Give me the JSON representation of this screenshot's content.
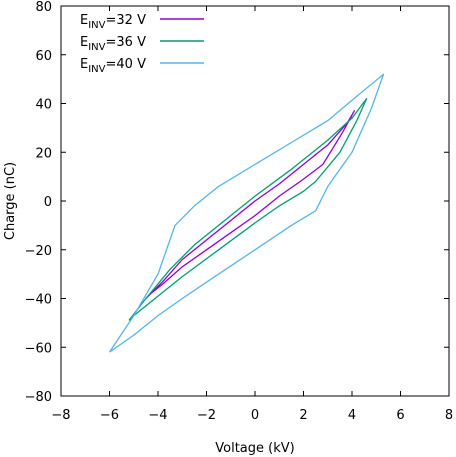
{
  "chart_data": {
    "type": "line",
    "xlabel": "Voltage (kV)",
    "ylabel": "Charge (nC)",
    "xlim": [
      -8,
      8
    ],
    "ylim": [
      -80,
      80
    ],
    "xticks": [
      -8,
      -6,
      -4,
      -2,
      0,
      2,
      4,
      6,
      8
    ],
    "yticks": [
      -80,
      -60,
      -40,
      -20,
      0,
      20,
      40,
      60,
      80
    ],
    "grid": false,
    "legend_position": "top-left",
    "series": [
      {
        "name": "E_INV=32 V",
        "label_main": "E",
        "label_sub": "INV",
        "label_rest": "=32 V",
        "color": "#9400d3",
        "x": [
          -4.5,
          -3.8,
          -3.0,
          -2.0,
          -1.0,
          0.0,
          1.0,
          2.0,
          3.0,
          3.8,
          4.1,
          3.6,
          2.8,
          2.0,
          1.0,
          0.0,
          -1.0,
          -2.0,
          -3.0,
          -3.8,
          -4.3,
          -4.5
        ],
        "y": [
          -40,
          -33,
          -24,
          -16,
          -8,
          0,
          7,
          15,
          23,
          32,
          37,
          28,
          15,
          9,
          2,
          -6,
          -13,
          -20,
          -27,
          -34,
          -38,
          -40
        ]
      },
      {
        "name": "E_INV=36 V",
        "label_main": "E",
        "label_sub": "INV",
        "label_rest": "=36 V",
        "color": "#009e73",
        "x": [
          -5.2,
          -4.5,
          -3.5,
          -2.5,
          -1.5,
          0.0,
          1.5,
          3.0,
          4.0,
          4.6,
          4.2,
          3.5,
          2.5,
          2.0,
          1.0,
          0.0,
          -1.5,
          -3.0,
          -4.0,
          -5.0,
          -5.2
        ],
        "y": [
          -49,
          -40,
          -28,
          -18,
          -10,
          2,
          13,
          25,
          34,
          42,
          33,
          20,
          8,
          4,
          -2,
          -9,
          -20,
          -31,
          -39,
          -47,
          -49
        ]
      },
      {
        "name": "E_INV=40 V",
        "label_main": "E",
        "label_sub": "INV",
        "label_rest": "=40 V",
        "color": "#56b4e9",
        "x": [
          -6.0,
          -5.0,
          -4.0,
          -3.3,
          -2.5,
          -1.5,
          0.0,
          1.5,
          3.0,
          4.2,
          5.3,
          4.8,
          4.0,
          3.0,
          2.5,
          1.5,
          0.0,
          -1.5,
          -3.0,
          -4.0,
          -5.0,
          -6.0
        ],
        "y": [
          -62,
          -47,
          -30,
          -10,
          -2,
          6,
          15,
          24,
          33,
          43,
          52,
          38,
          20,
          6,
          -4,
          -10,
          -20,
          -30,
          -40,
          -47,
          -55,
          -62
        ]
      }
    ]
  }
}
